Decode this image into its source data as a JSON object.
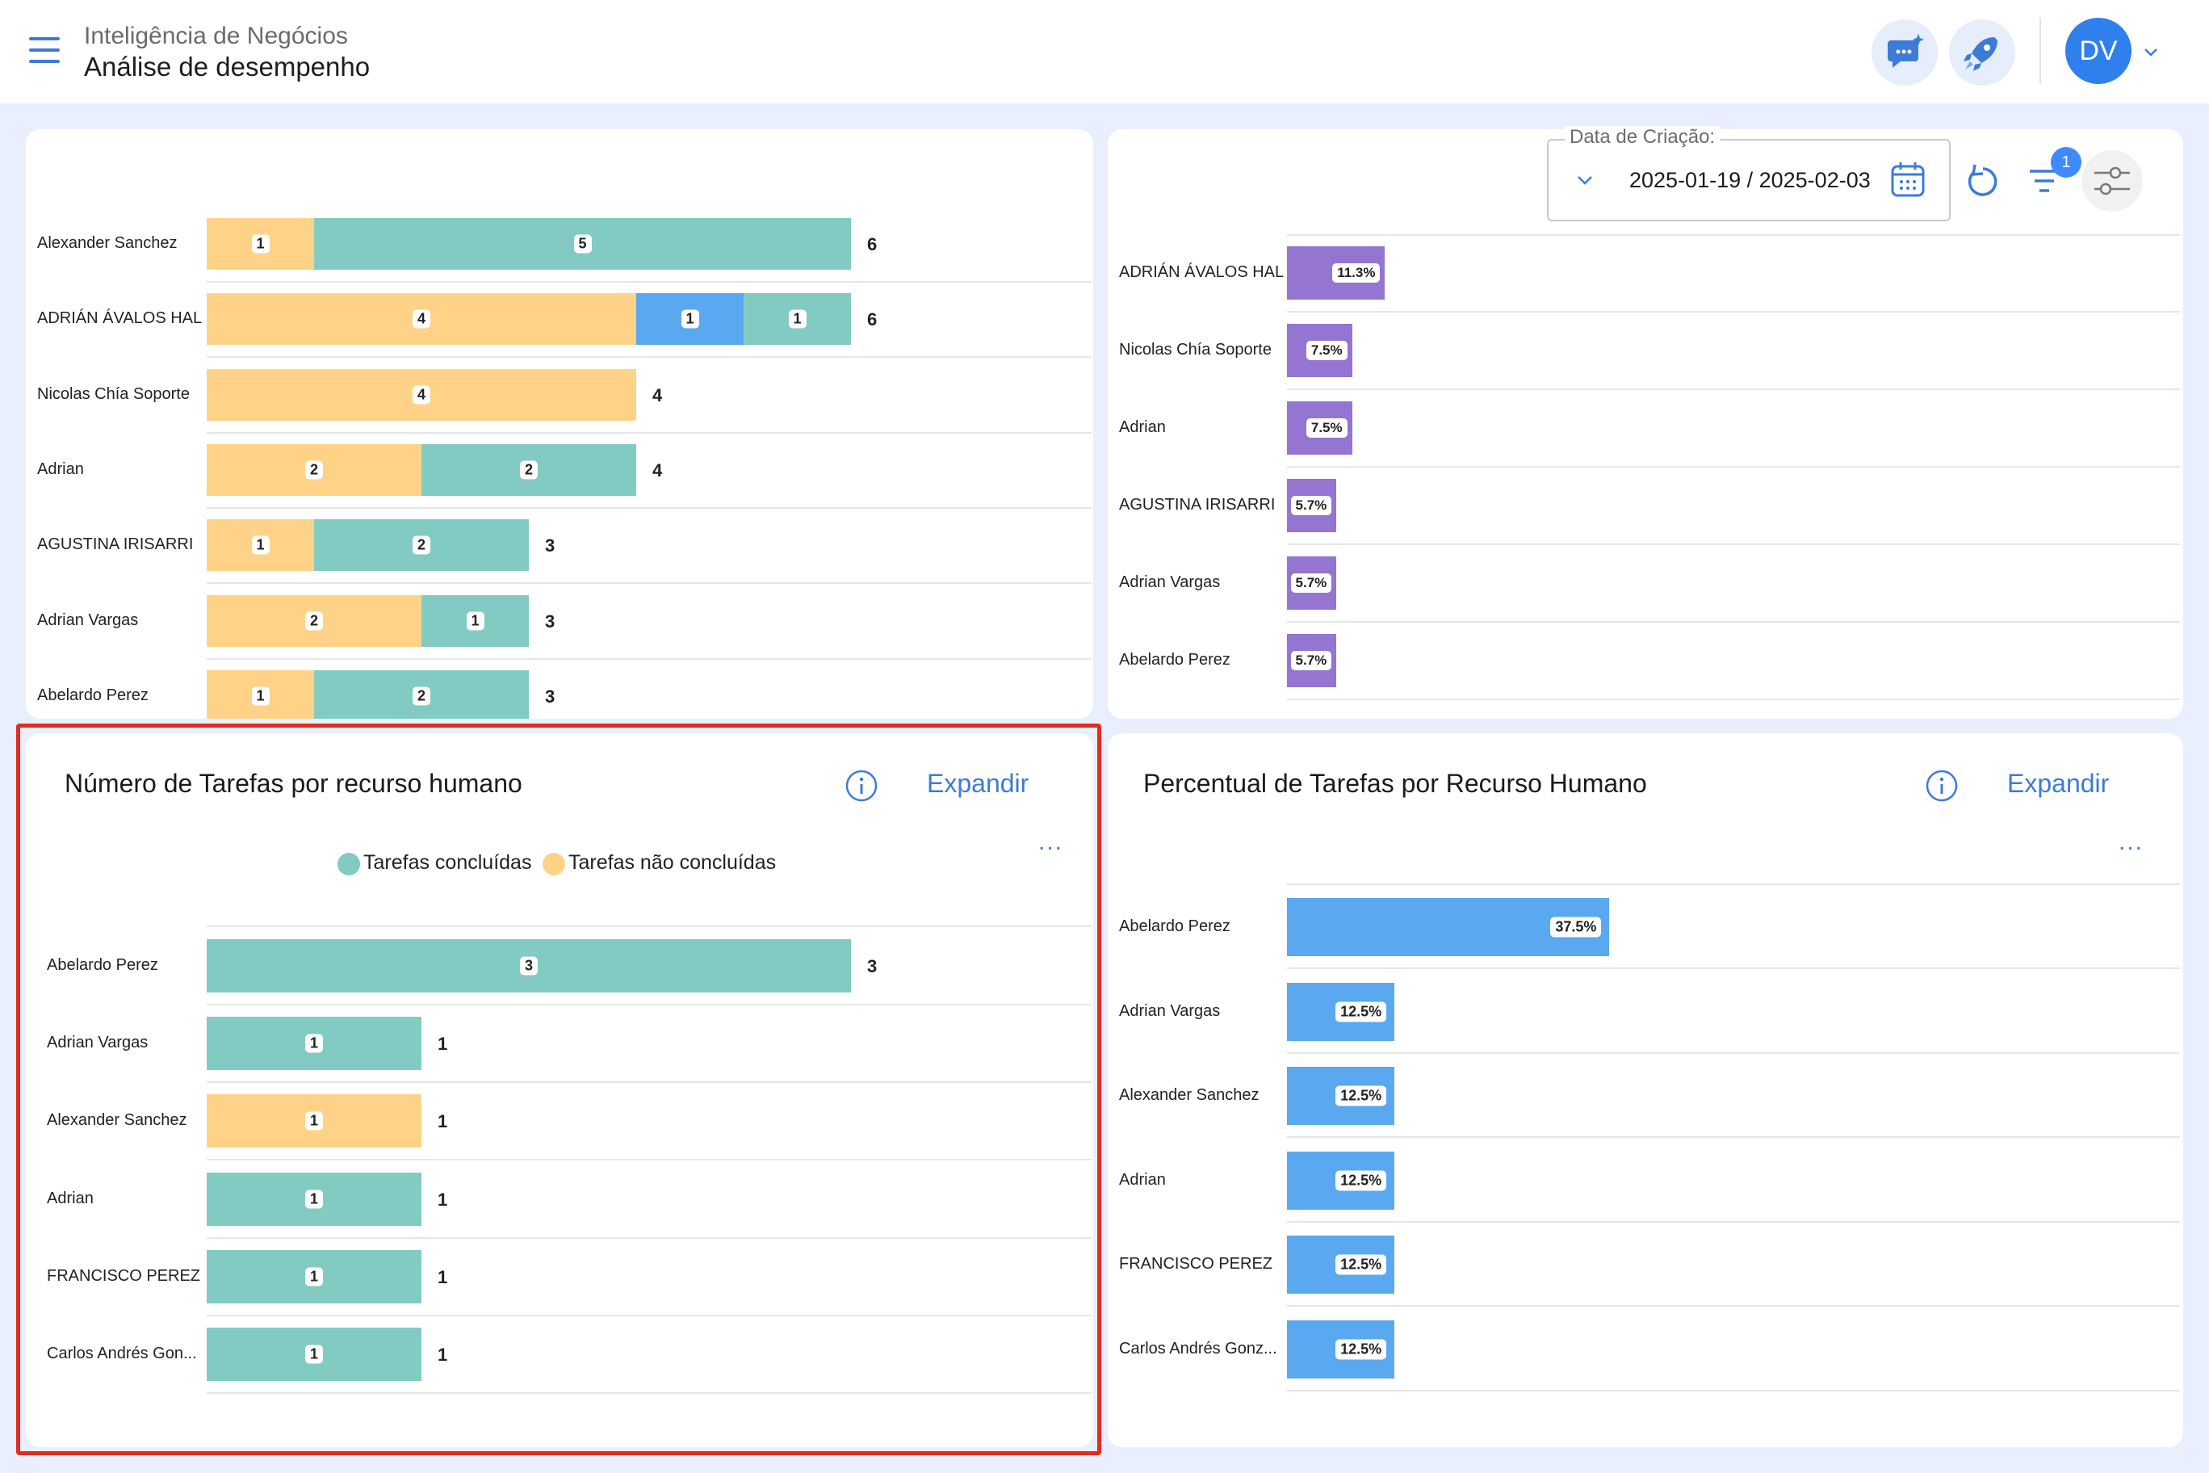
{
  "header": {
    "app_title": "Inteligência de Negócios",
    "page_title": "Análise de desempenho",
    "avatar_initials": "DV"
  },
  "filters": {
    "date_label": "Data de Criação:",
    "date_range": "2025-01-19 / 2025-02-03",
    "active_filter_count": "1"
  },
  "colors": {
    "completed": "#82cbc3",
    "not_completed": "#fed387",
    "blue": "#5aa8f0",
    "purple": "#9475d1",
    "accent": "#3d7bd9"
  },
  "top_left_chart": {
    "rows": [
      {
        "name": "Alexander Sanchez",
        "not_completed": 1,
        "blue": 0,
        "completed": 5,
        "total": "6"
      },
      {
        "name": "ADRIÁN ÁVALOS HAL",
        "not_completed": 4,
        "blue": 1,
        "completed": 1,
        "total": "6"
      },
      {
        "name": "Nicolas Chía Soporte",
        "not_completed": 4,
        "blue": 0,
        "completed": 0,
        "total": "4"
      },
      {
        "name": "Adrian",
        "not_completed": 2,
        "blue": 0,
        "completed": 2,
        "total": "4"
      },
      {
        "name": "AGUSTINA IRISARRI",
        "not_completed": 1,
        "blue": 0,
        "completed": 2,
        "total": "3"
      },
      {
        "name": "Adrian Vargas",
        "not_completed": 2,
        "blue": 0,
        "completed": 1,
        "total": "3"
      },
      {
        "name": "Abelardo Perez",
        "not_completed": 1,
        "blue": 0,
        "completed": 2,
        "total": "3"
      }
    ]
  },
  "top_right_chart": {
    "rows": [
      {
        "name": "ADRIÁN ÁVALOS HAL",
        "value": 11.3,
        "label": "11.3%"
      },
      {
        "name": "Nicolas Chía Soporte",
        "value": 7.5,
        "label": "7.5%"
      },
      {
        "name": "Adrian",
        "value": 7.5,
        "label": "7.5%"
      },
      {
        "name": "AGUSTINA IRISARRI",
        "value": 5.7,
        "label": "5.7%"
      },
      {
        "name": "Adrian Vargas",
        "value": 5.7,
        "label": "5.7%"
      },
      {
        "name": "Abelardo Perez",
        "value": 5.7,
        "label": "5.7%"
      }
    ]
  },
  "tasks_card": {
    "title": "Número de Tarefas por recurso humano",
    "expand_label": "Expandir",
    "more_label": "...",
    "legend": [
      {
        "label": "Tarefas concluídas",
        "color": "#82cbc3"
      },
      {
        "label": "Tarefas não concluídas",
        "color": "#fed387"
      }
    ],
    "chart_data": {
      "type": "bar",
      "orientation": "horizontal",
      "stacked": true,
      "categories": [
        "Abelardo Perez",
        "Adrian Vargas",
        "Alexander Sanchez",
        "Adrian",
        "FRANCISCO PEREZ",
        "Carlos Andrés Gon..."
      ],
      "series": [
        {
          "name": "Tarefas concluídas",
          "values": [
            3,
            1,
            0,
            1,
            1,
            1
          ]
        },
        {
          "name": "Tarefas não concluídas",
          "values": [
            0,
            0,
            1,
            0,
            0,
            0
          ]
        }
      ],
      "totals": [
        "3",
        "1",
        "1",
        "1",
        "1",
        "1"
      ],
      "xlim": [
        0,
        4
      ]
    }
  },
  "percent_card": {
    "title": "Percentual de Tarefas por Recurso Humano",
    "expand_label": "Expandir",
    "more_label": "...",
    "chart_data": {
      "type": "bar",
      "orientation": "horizontal",
      "categories": [
        "Abelardo Perez",
        "Adrian Vargas",
        "Alexander Sanchez",
        "Adrian",
        "FRANCISCO PEREZ",
        "Carlos Andrés Gonz..."
      ],
      "values": [
        37.5,
        12.5,
        12.5,
        12.5,
        12.5,
        12.5
      ],
      "labels": [
        "37.5%",
        "12.5%",
        "12.5%",
        "12.5%",
        "12.5%",
        "12.5%"
      ]
    }
  }
}
